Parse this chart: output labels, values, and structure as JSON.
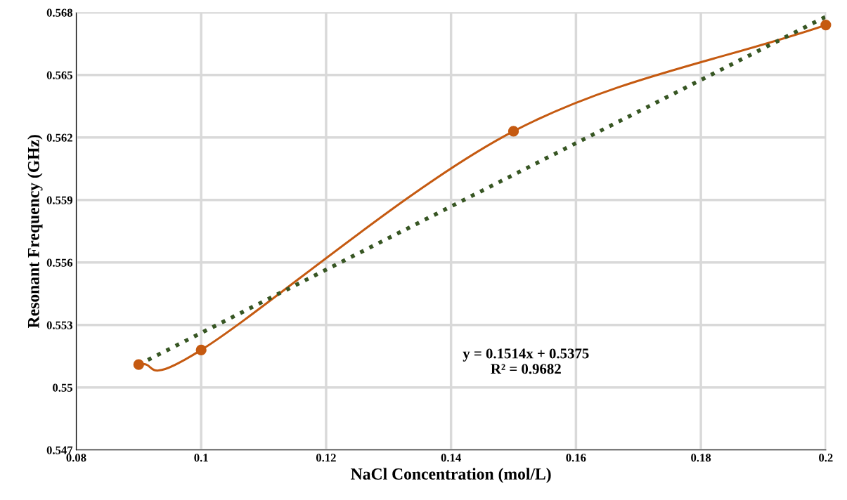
{
  "chart_data": {
    "type": "line",
    "xlabel": "NaCl Concentration (mol/L)",
    "ylabel": "Resonant Frequency (GHz)",
    "x": [
      0.09,
      0.1,
      0.15,
      0.2
    ],
    "series": [
      {
        "color": "#c55a11",
        "values": [
          0.5511,
          0.5518,
          0.5623,
          0.5674
        ],
        "marker": "circle",
        "line_style": "solid"
      },
      {
        "color": "#375623",
        "x": [
          0.09,
          0.2
        ],
        "values": [
          0.5511,
          0.5678
        ],
        "marker": "none",
        "line_style": "dotted"
      }
    ],
    "xlim": [
      0.08,
      0.2
    ],
    "xticks": [
      0.08,
      0.1,
      0.12,
      0.14,
      0.16,
      0.18,
      0.2
    ],
    "ylim": [
      0.547,
      0.568
    ],
    "yticks": [
      0.547,
      0.55,
      0.553,
      0.556,
      0.559,
      0.562,
      0.565,
      0.568
    ],
    "grid": true,
    "legend": false,
    "annotations": [
      "y = 0.1514x + 0.5375\nR² = 0.9682"
    ]
  }
}
